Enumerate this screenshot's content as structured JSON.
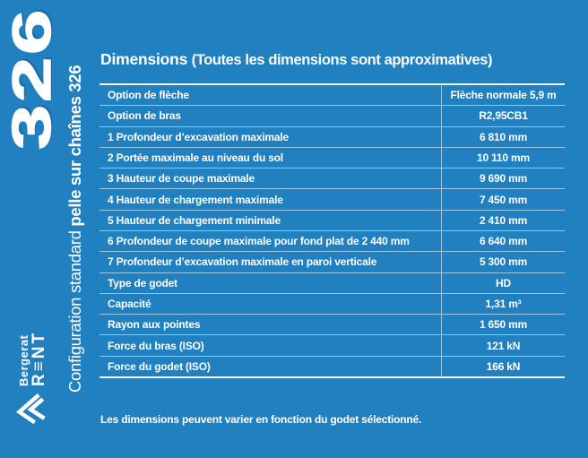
{
  "colors": {
    "background_blue": "#2180BF",
    "text": "#FFFFFF",
    "row_separator": "#9CC5E1",
    "table_border": "#F2F7FB"
  },
  "sidebar": {
    "model_number": "326",
    "subtitle_regular": "Configuration standard ",
    "subtitle_bold": "pelle sur chaînes 326",
    "logo": {
      "brand": "Bergerat",
      "product": "R≡NT"
    }
  },
  "header": {
    "title": "Dimensions",
    "subtitle": "(Toutes les dimensions sont approximatives)"
  },
  "table": {
    "rows": [
      {
        "label": "Option de flèche",
        "value": "Flèche normale 5,9 m"
      },
      {
        "label": "Option de bras",
        "value": "R2,95CB1"
      },
      {
        "label": "1 Profondeur d’excavation maximale",
        "value": "6 810 mm"
      },
      {
        "label": "2 Portée maximale au niveau du sol",
        "value": "10 110 mm"
      },
      {
        "label": "3 Hauteur de coupe maximale",
        "value": "9 690 mm"
      },
      {
        "label": "4 Hauteur de chargement maximale",
        "value": "7 450 mm"
      },
      {
        "label": "5 Hauteur de chargement minimale",
        "value": "2 410 mm"
      },
      {
        "label": "6 Profondeur de coupe maximale pour fond plat de 2 440 mm",
        "value": "6 640 mm"
      },
      {
        "label": "7 Profondeur d’excavation maximale en paroi verticale",
        "value": "5 300 mm"
      },
      {
        "label": "Type de godet",
        "value": "HD"
      },
      {
        "label": "Capacité",
        "value": "1,31 m³"
      },
      {
        "label": "Rayon aux pointes",
        "value": "1 650 mm"
      },
      {
        "label": "Force du bras (ISO)",
        "value": "121 kN"
      },
      {
        "label": "Force du godet (ISO)",
        "value": "166 kN"
      }
    ]
  },
  "footer": {
    "note": "Les dimensions peuvent varier en fonction du godet sélectionné."
  }
}
